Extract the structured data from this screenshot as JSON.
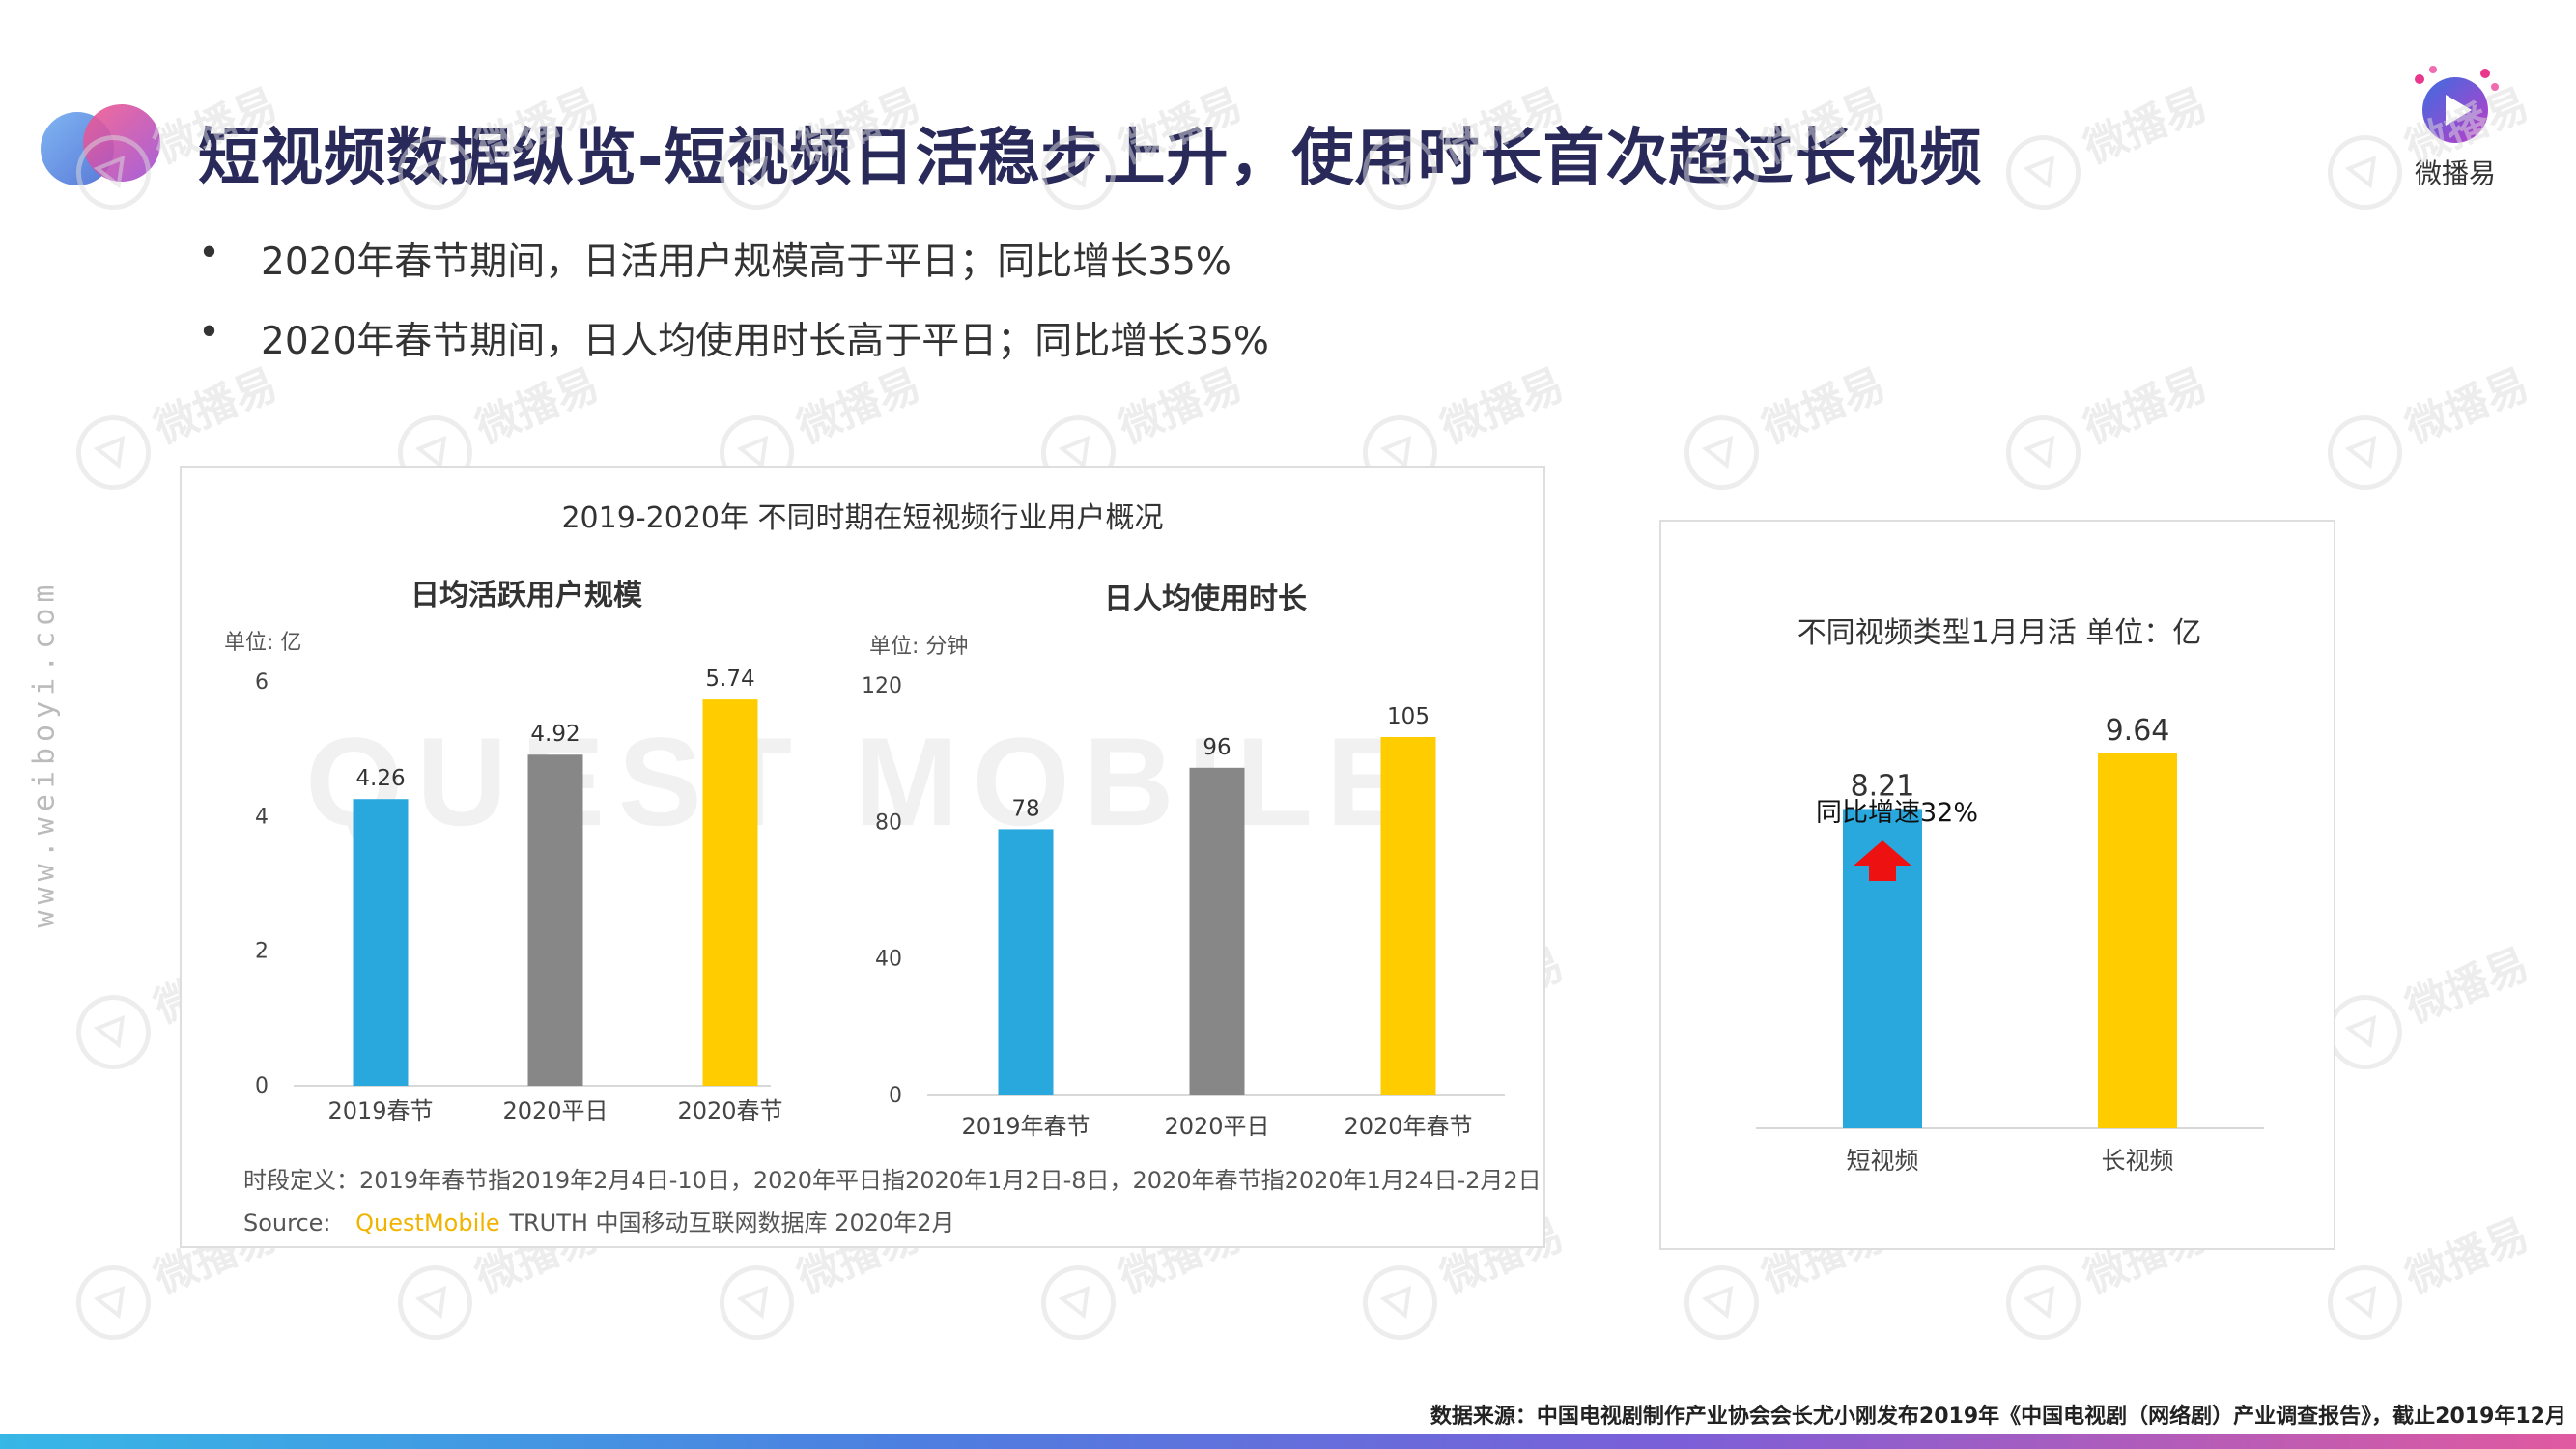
{
  "header": {
    "title": "短视频数据纵览-短视频日活稳步上升，使用时长首次超过长视频",
    "brand_name": "微播易",
    "side_url": "www.weiboyi.com"
  },
  "bullets": [
    {
      "dot": "•",
      "text": "2020年春节期间，日活用户规模高于平日；同比增长35%"
    },
    {
      "dot": "•",
      "text": "2020年春节期间，日人均使用时长高于平日；同比增长35%"
    }
  ],
  "left_panel": {
    "title": "2019-2020年 不同时期在短视频行业用户概况",
    "footnote": "时段定义：2019年春节指2019年2月4日-10日，2020年平日指2020年1月2日-8日，2020年春节指2020年1月24日-2月2日",
    "source_label": "Source:",
    "source_brand": "QuestMobile",
    "source_rest": "TRUTH 中国移动互联网数据库 2020年2月",
    "watermark": "QUEST MOBILE"
  },
  "colors": {
    "blue": "#29a8de",
    "gray": "#878787",
    "yellow": "#ffcc00",
    "red": "#ee1111",
    "title": "#2a2a5a"
  },
  "chart_data": [
    {
      "type": "bar",
      "title": "日均活跃用户规模",
      "unit_label": "单位: 亿",
      "categories": [
        "2019春节",
        "2020平日",
        "2020春节"
      ],
      "values": [
        4.26,
        4.92,
        5.74
      ],
      "value_labels": [
        "4.26",
        "4.92",
        "5.74"
      ],
      "ylim": [
        0,
        6
      ],
      "yticks": [
        0,
        2,
        4,
        6
      ],
      "colors": [
        "#29a8de",
        "#878787",
        "#ffcc00"
      ]
    },
    {
      "type": "bar",
      "title": "日人均使用时长",
      "unit_label": "单位: 分钟",
      "categories": [
        "2019年春节",
        "2020平日",
        "2020年春节"
      ],
      "values": [
        78,
        96,
        105
      ],
      "value_labels": [
        "78",
        "96",
        "105"
      ],
      "ylim": [
        0,
        120
      ],
      "yticks": [
        0,
        40,
        80,
        120
      ],
      "colors": [
        "#29a8de",
        "#878787",
        "#ffcc00"
      ]
    },
    {
      "type": "bar",
      "title": "不同视频类型1月月活 单位：亿",
      "categories": [
        "短视频",
        "长视频"
      ],
      "values": [
        8.21,
        9.64
      ],
      "value_labels": [
        "8.21",
        "9.64"
      ],
      "ylim": [
        0,
        11.5
      ],
      "colors": [
        "#29a8de",
        "#ffcc00"
      ],
      "annotation": "同比增速32%"
    }
  ],
  "footer": {
    "note": "数据来源：中国电视剧制作产业协会会长尤小刚发布2019年《中国电视剧（网络剧）产业调查报告》，截止2019年12月"
  },
  "watermark_text": "微播易"
}
